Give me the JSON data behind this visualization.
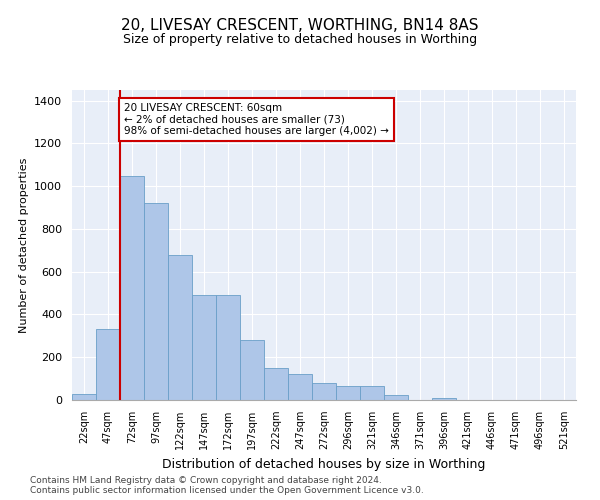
{
  "title": "20, LIVESAY CRESCENT, WORTHING, BN14 8AS",
  "subtitle": "Size of property relative to detached houses in Worthing",
  "xlabel": "Distribution of detached houses by size in Worthing",
  "ylabel": "Number of detached properties",
  "categories": [
    "22sqm",
    "47sqm",
    "72sqm",
    "97sqm",
    "122sqm",
    "147sqm",
    "172sqm",
    "197sqm",
    "222sqm",
    "247sqm",
    "272sqm",
    "296sqm",
    "321sqm",
    "346sqm",
    "371sqm",
    "396sqm",
    "421sqm",
    "446sqm",
    "471sqm",
    "496sqm",
    "521sqm"
  ],
  "values": [
    30,
    330,
    1050,
    920,
    680,
    490,
    490,
    280,
    150,
    120,
    80,
    65,
    65,
    25,
    0,
    10,
    0,
    0,
    0,
    0,
    0
  ],
  "bar_color": "#aec6e8",
  "bar_edge_color": "#6a9fc8",
  "red_line_x": 1.52,
  "annotation_text": "20 LIVESAY CRESCENT: 60sqm\n← 2% of detached houses are smaller (73)\n98% of semi-detached houses are larger (4,002) →",
  "annotation_box_color": "#ffffff",
  "annotation_box_edge_color": "#cc0000",
  "ylim": [
    0,
    1450
  ],
  "yticks": [
    0,
    200,
    400,
    600,
    800,
    1000,
    1200,
    1400
  ],
  "background_color": "#e8eef8",
  "grid_color": "#ffffff",
  "footer_line1": "Contains HM Land Registry data © Crown copyright and database right 2024.",
  "footer_line2": "Contains public sector information licensed under the Open Government Licence v3.0."
}
